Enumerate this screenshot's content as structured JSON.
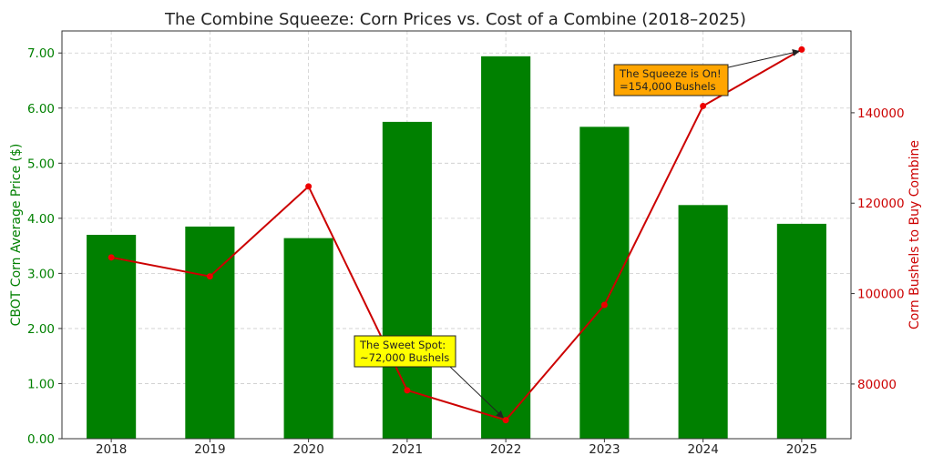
{
  "chart_data": {
    "type": "bar",
    "title": "The Combine Squeeze: Corn Prices vs. Cost of a Combine (2018–2025)",
    "categories": [
      "2018",
      "2019",
      "2020",
      "2021",
      "2022",
      "2023",
      "2024",
      "2025"
    ],
    "series": [
      {
        "name": "CBOT Corn Average Price ($)",
        "type": "bar",
        "axis": "left",
        "color": "#008000",
        "values": [
          3.7,
          3.85,
          3.64,
          5.75,
          6.94,
          5.66,
          4.24,
          3.9
        ]
      },
      {
        "name": "Corn Bushels to Buy Combine",
        "type": "line",
        "axis": "right",
        "color": "#d62728",
        "values": [
          108000,
          103800,
          123700,
          78600,
          72000,
          97500,
          141500,
          154000
        ]
      }
    ],
    "left_axis": {
      "label": "CBOT Corn Average Price ($)",
      "ylim": [
        0,
        7.4
      ],
      "ticks": [
        0,
        1,
        2,
        3,
        4,
        5,
        6,
        7
      ],
      "tick_labels": [
        "0.00",
        "1.00",
        "2.00",
        "3.00",
        "4.00",
        "5.00",
        "6.00",
        "7.00"
      ],
      "color": "#008000"
    },
    "right_axis": {
      "label": "Corn Bushels to Buy Combine",
      "ylim": [
        67900,
        158100
      ],
      "ticks": [
        80000,
        100000,
        120000,
        140000
      ],
      "tick_labels": [
        "80000",
        "100000",
        "120000",
        "140000"
      ],
      "color": "#cc0000"
    },
    "grid": true,
    "annotations": [
      {
        "id": "sweet",
        "lines": [
          "The Sweet Spot:",
          "~72,000 Bushels"
        ],
        "target_index": 4,
        "background": "#ffff00"
      },
      {
        "id": "squeeze",
        "lines": [
          "The Squeeze is On!",
          "=154,000 Bushels"
        ],
        "target_index": 7,
        "background": "#ffa500"
      }
    ]
  }
}
